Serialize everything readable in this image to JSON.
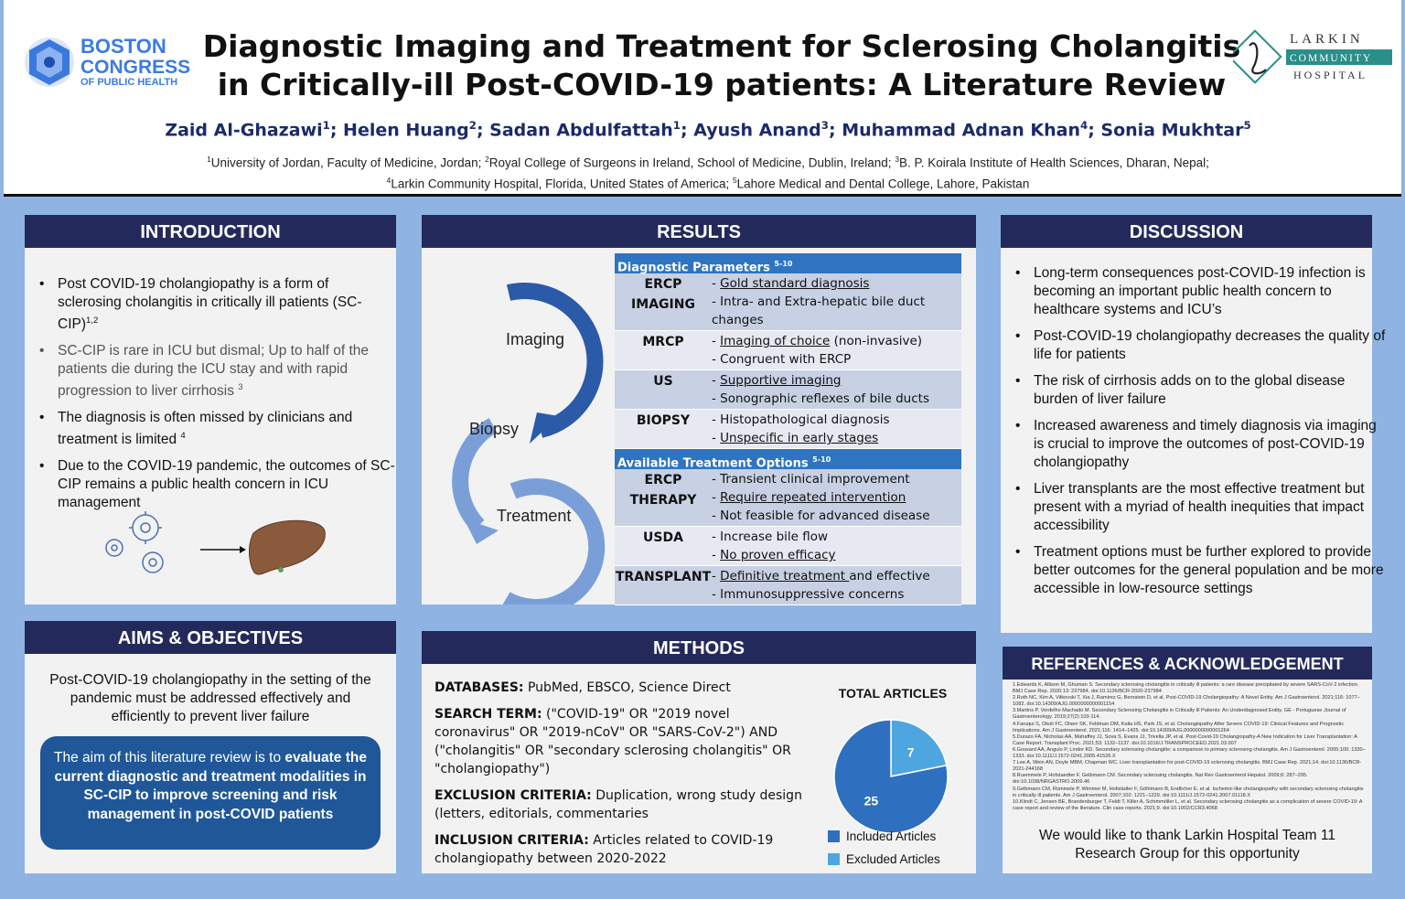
{
  "title_lines": [
    "Diagnostic Imaging and Treatment for Sclerosing Cholangitis",
    "in Critically-ill Post-COVID-19 patients: A Literature Review"
  ],
  "authors": [
    {
      "name": "Zaid Al-Ghazawi",
      "aff": "1"
    },
    {
      "name": "Helen Huang",
      "aff": "2"
    },
    {
      "name": "Sadan Abdulfattah",
      "aff": "1"
    },
    {
      "name": "Ayush Anand",
      "aff": "3"
    },
    {
      "name": "Muhammad Adnan Khan",
      "aff": "4"
    },
    {
      "name": "Sonia Mukhtar",
      "aff": "5"
    }
  ],
  "affiliations_line1": [
    {
      "sup": "1",
      "text": "University of Jordan, Faculty of Medicine, Jordan; "
    },
    {
      "sup": "2",
      "text": "Royal College of Surgeons in Ireland, School of Medicine, Dublin, Ireland; "
    },
    {
      "sup": "3",
      "text": "B. P. Koirala Institute of Health Sciences, Dharan, Nepal;"
    }
  ],
  "affiliations_line2": [
    {
      "sup": "4",
      "text": "Larkin Community Hospital, Florida, United States of America; "
    },
    {
      "sup": "5",
      "text": "Lahore Medical and Dental College, Lahore, Pakistan"
    }
  ],
  "logo_left": {
    "line1": "BOSTON",
    "line2": "CONGRESS",
    "line3": "OF PUBLIC HEALTH",
    "color": "#2f6fd6"
  },
  "logo_right": {
    "line1": "LARKIN",
    "line2": "COMMUNITY",
    "line3": "HOSPITAL",
    "color": "#2a8f8a"
  },
  "introduction": {
    "heading": "INTRODUCTION",
    "bullets": [
      {
        "text": "Post COVID-19 cholangiopathy is a form of sclerosing cholangitis in critically ill patients (SC-CIP)",
        "sup": "1,2"
      },
      {
        "text": "SC-CIP is rare in ICU but dismal; Up to half of the patients die during the ICU stay and with rapid progression to liver cirrhosis ",
        "sup": "3"
      },
      {
        "text": "The diagnosis is often missed by clinicians and treatment is limited ",
        "sup": "4"
      },
      {
        "text": "Due to the COVID-19 pandemic, the outcomes of SC-CIP remains a public health concern in ICU management",
        "sup": ""
      }
    ]
  },
  "aims": {
    "heading": "AIMS & OBJECTIVES",
    "text": "Post-COVID-19 cholangiopathy in the setting of the pandemic must be addressed effectively and efficiently to prevent liver failure",
    "box_plain": "The aim of this literature review is to ",
    "box_bold": "evaluate the current diagnostic and treatment modalities in SC-CIP to improve screening and risk management in post-COVID patients"
  },
  "results": {
    "heading": "RESULTS",
    "cycle": [
      "Imaging",
      "Biopsy",
      "Treatment"
    ],
    "diag_header": "Diagnostic Parameters",
    "diag_sup": "5-10",
    "diag_rows": [
      {
        "name_lines": [
          "ERCP",
          "IMAGING"
        ],
        "items": [
          {
            "u": "Gold standard diagnosis",
            "rest": ""
          },
          {
            "u": "",
            "rest": "Intra- and Extra-hepatic bile duct changes"
          }
        ]
      },
      {
        "name_lines": [
          "MRCP"
        ],
        "items": [
          {
            "u": "Imaging of choice",
            "rest": " (non-invasive)"
          },
          {
            "u": "",
            "rest": "Congruent with ERCP"
          }
        ]
      },
      {
        "name_lines": [
          "US"
        ],
        "items": [
          {
            "u": "Supportive imaging",
            "rest": ""
          },
          {
            "u": "",
            "rest": "Sonographic reflexes of bile ducts"
          }
        ]
      },
      {
        "name_lines": [
          "BIOPSY"
        ],
        "items": [
          {
            "u": "",
            "rest": "Histopathological diagnosis"
          },
          {
            "u": "Unspecific in early stages",
            "rest": ""
          }
        ]
      }
    ],
    "treat_header": "Available Treatment Options",
    "treat_sup": "5-10",
    "treat_rows": [
      {
        "name_lines": [
          "ERCP",
          "THERAPY"
        ],
        "items": [
          {
            "u": "",
            "rest": "Transient clinical improvement"
          },
          {
            "u": "Require repeated intervention",
            "rest": ""
          },
          {
            "u": "",
            "rest": "Not feasible for advanced disease"
          }
        ]
      },
      {
        "name_lines": [
          "USDA"
        ],
        "items": [
          {
            "u": "",
            "rest": "Increase bile flow"
          },
          {
            "u": "No proven efficacy",
            "rest": ""
          }
        ]
      },
      {
        "name_lines": [
          "TRANSPLANT"
        ],
        "items": [
          {
            "u": "Definitive treatment ",
            "rest": "and effective"
          },
          {
            "u": "",
            "rest": "Immunosuppressive concerns"
          }
        ]
      }
    ]
  },
  "methods": {
    "heading": "METHODS",
    "entries": [
      {
        "label": "DATABASES:",
        "text": " PubMed, EBSCO, Science Direct"
      },
      {
        "label": "SEARCH TERM:",
        "text": " (\"COVID-19\" OR \"2019 novel coronavirus\" OR \"2019-nCoV\" OR \"SARS-CoV-2\") AND (\"cholangitis\" OR \"secondary sclerosing cholangitis\" OR \"cholangiopathy\")"
      },
      {
        "label": "EXCLUSION CRITERIA:",
        "text": " Duplication, wrong study design (letters, editorials, commentaries"
      },
      {
        "label": "INCLUSION CRITERIA:",
        "text": " Articles related to COVID-19 cholangiopathy between 2020-2022"
      }
    ]
  },
  "chart_data": {
    "type": "pie",
    "title": "TOTAL ARTICLES",
    "categories": [
      "Included Articles",
      "Excluded Articles"
    ],
    "values": [
      25,
      7
    ],
    "colors": [
      "#2e6fbf",
      "#4ea6e0"
    ]
  },
  "discussion": {
    "heading": "DISCUSSION",
    "bullets": [
      "Long-term consequences post-COVID-19 infection is becoming an important public health concern to healthcare systems and ICU’s",
      "Post-COVID-19 cholangiopathy decreases the quality of life for patients",
      "The risk of cirrhosis adds on to the global disease burden of liver failure",
      "Increased awareness and timely diagnosis via imaging is crucial to improve the outcomes of post-COVID-19 cholangiopathy",
      "Liver transplants are the most effective treatment but present with a myriad of health inequities that impact accessibility",
      "Treatment options must be further explored to provide better outcomes for the general population and be more accessible in low-resource settings"
    ]
  },
  "references": {
    "heading": "REFERENCES & ACKNOWLEDGEMENT",
    "items": [
      "1.Edwards K, Allison M, Ghuman S. Secondary sclerosing cholangitis in critically ill patients: a rare disease precipitated by severe SARS-CoV-2 infection. BMJ Case Rep. 2020;13: 237984. doi:10.1136/BCR-2020-237984",
      "2.Roth NC, Kim A, Vitkovski T, Xia J, Ramirez G, Bernstein D, et al. Post-COVID-19 Cholangiopathy: A Novel Entity. Am J Gastroenterol. 2021;116: 1077–1082. doi:10.14309/AJG.0000000000001154",
      "3.Martins P, Verdelho Machado M. Secondary Sclerosing Cholangitis in Critically Ill Patients: An Underdiagnosed Entity. GE - Portuguese Journal of Gastroenterology. 2019;27(2):103-114.",
      "4.Faruqui S, Okoli FC, Olsen SK, Feldman DM, Kalia HS, Park JS, et al. Cholangiopathy After Severe COVID-19: Clinical Features and Prognostic Implications. Am J Gastroenterol. 2021;116: 1414–1425. doi:10.14309/AJG.0000000000001264",
      "5.Durazo FA, Nicholas AA, Mahaffey JJ, Sova S, Evans JJ, Trivella JP, et al. Post-Covid-19 Cholangiopathy-A New Indication for Liver Transplantation: A Case Report. Transplant Proc. 2021;53: 1132–1137. doi:10.1016/J.TRANSPROCEED.2021.03.007",
      "6.Gossard AA, Angulo P, Lindor KD. Secondary sclerosing cholangitis: a comparison to primary sclerosing cholangitis. Am J Gastroenterol. 2005;100: 1330–1333. doi:10.1111/J.1572-0241.2005.41526.X",
      "7.Lee A, Wein AN, Doyle MBM, Chapman WC. Liver transplantation for post-COVID-19 sclerosing cholangitis. BMJ Case Rep. 2021;14. doi:10.1136/BCR-2021-244168",
      "8.Ruemmele P, Hofstaedter F, Gelbmann CM. Secondary sclerosing cholangitis. Nat Rev Gastroenterol Hepatol. 2009;6: 287–295. doi:10.1038/NRGASTRO.2009.46",
      "9.Gelbmann CM, Rümmele P, Wimmer M, Hofstädter F, Göhlmann B, Endlicher E, et al. Ischemic-like cholangiopathy with secondary sclerosing cholangitis in critically ill patients. Am J Gastroenterol. 2007;102: 1221–1229. doi:10.1111/J.1572-0241.2007.01118.X",
      "10.Klindt C, Jensen BE, Brandenburger T, Feldt T, Killer A, Schimmöller L, et al. Secondary sclerosing cholangitis as a complication of severe COVID-19: A case report and review of the literature. Clin case reports. 2021;9. doi:10.1002/CCR3.4068"
    ],
    "acknowledgement": "We would like to thank Larkin Hospital Team 11 Research Group for this opportunity"
  }
}
